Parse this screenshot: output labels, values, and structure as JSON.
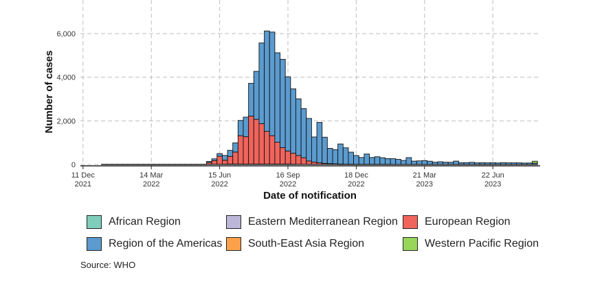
{
  "chart_data": {
    "type": "bar",
    "stacked": true,
    "xlabel": "Date of notification",
    "ylabel": "Number of cases",
    "ylim": [
      0,
      7500
    ],
    "yticks": [
      {
        "value": 0,
        "label": "0"
      },
      {
        "value": 2000,
        "label": "2,000"
      },
      {
        "value": 4000,
        "label": "4,000"
      },
      {
        "value": 6000,
        "label": "6,000"
      }
    ],
    "xticks": [
      {
        "week": 0,
        "label1": "11 Dec",
        "label2": "2021"
      },
      {
        "week": 13,
        "label1": "14 Mar",
        "label2": "2022"
      },
      {
        "week": 26,
        "label1": "15 Jun",
        "label2": "2022"
      },
      {
        "week": 39,
        "label1": "16 Sep",
        "label2": "2022"
      },
      {
        "week": 52,
        "label1": "18 Dec",
        "label2": "2022"
      },
      {
        "week": 65,
        "label1": "21 Mar",
        "label2": "2023"
      },
      {
        "week": 78,
        "label1": "22 Jun",
        "label2": "2023"
      }
    ],
    "xlim_weeks": [
      -0.5,
      87
    ],
    "first_bar_week": 4,
    "grid": true,
    "legend_position": "bottom",
    "series": [
      {
        "name": "African Region",
        "color": "#7fcdbb",
        "values": [
          5,
          5,
          5,
          5,
          5,
          5,
          5,
          5,
          5,
          5,
          5,
          5,
          5,
          5,
          5,
          5,
          5,
          5,
          5,
          5,
          10,
          10,
          10,
          10,
          15,
          15,
          15,
          15,
          15,
          15,
          15,
          15,
          15,
          15,
          15,
          15,
          10,
          10,
          10,
          10,
          10,
          10,
          10,
          10,
          10,
          5,
          5,
          5,
          5,
          5,
          5,
          5,
          5,
          5,
          5,
          5,
          5,
          5,
          5,
          5,
          5,
          5,
          5,
          5,
          5,
          5,
          5,
          5,
          5,
          5,
          5,
          5,
          5,
          5,
          5,
          5,
          5,
          5,
          5,
          5,
          5,
          5,
          5
        ]
      },
      {
        "name": "Eastern Mediterranean Region",
        "color": "#bcb6d8",
        "values": [
          0,
          0,
          0,
          0,
          0,
          0,
          0,
          0,
          0,
          0,
          0,
          0,
          0,
          0,
          0,
          0,
          0,
          0,
          0,
          0,
          0,
          0,
          0,
          5,
          5,
          5,
          5,
          5,
          5,
          5,
          5,
          5,
          5,
          5,
          5,
          5,
          5,
          0,
          0,
          0,
          0,
          0,
          0,
          0,
          0,
          0,
          0,
          0,
          0,
          0,
          0,
          0,
          0,
          0,
          0,
          0,
          0,
          0,
          0,
          0,
          0,
          0,
          0,
          0,
          0,
          0,
          0,
          0,
          0,
          0,
          0,
          0,
          0,
          0,
          0,
          0,
          0,
          0,
          0,
          0,
          0,
          0,
          0
        ]
      },
      {
        "name": "European Region",
        "color": "#f0645c",
        "values": [
          0,
          0,
          0,
          0,
          0,
          0,
          0,
          0,
          0,
          0,
          0,
          0,
          0,
          0,
          0,
          0,
          0,
          0,
          0,
          0,
          80,
          170,
          370,
          180,
          350,
          550,
          1300,
          1250,
          2200,
          2050,
          1850,
          1500,
          1300,
          1000,
          750,
          600,
          500,
          400,
          300,
          150,
          100,
          70,
          40,
          30,
          20,
          15,
          10,
          10,
          5,
          5,
          5,
          5,
          5,
          5,
          5,
          0,
          0,
          0,
          0,
          0,
          0,
          0,
          0,
          0,
          0,
          0,
          0,
          0,
          0,
          0,
          0,
          0,
          0,
          0,
          0,
          0,
          0,
          0,
          0,
          0,
          0,
          0,
          0
        ]
      },
      {
        "name": "Region of the Americas",
        "color": "#5b9bcf",
        "values": [
          5,
          5,
          5,
          5,
          5,
          5,
          5,
          5,
          5,
          5,
          5,
          5,
          5,
          5,
          5,
          5,
          5,
          5,
          5,
          5,
          50,
          80,
          120,
          220,
          280,
          420,
          700,
          900,
          1500,
          2200,
          3700,
          4600,
          4750,
          4100,
          4050,
          3400,
          2950,
          2600,
          2250,
          1950,
          1150,
          1850,
          1200,
          700,
          650,
          920,
          750,
          550,
          400,
          310,
          470,
          310,
          345,
          300,
          260,
          260,
          230,
          180,
          310,
          150,
          160,
          175,
          145,
          100,
          120,
          100,
          95,
          150,
          75,
          80,
          95,
          70,
          75,
          70,
          75,
          65,
          80,
          70,
          70,
          70,
          60,
          65,
          55
        ]
      },
      {
        "name": "South-East Asia Region",
        "color": "#fca14a",
        "values": [
          0,
          0,
          0,
          0,
          0,
          0,
          0,
          0,
          0,
          0,
          0,
          0,
          0,
          0,
          0,
          0,
          0,
          0,
          0,
          0,
          0,
          0,
          0,
          0,
          0,
          0,
          0,
          0,
          0,
          0,
          0,
          0,
          0,
          0,
          0,
          0,
          0,
          0,
          0,
          0,
          0,
          0,
          0,
          0,
          0,
          0,
          0,
          0,
          0,
          0,
          0,
          0,
          0,
          0,
          0,
          0,
          0,
          0,
          0,
          0,
          0,
          0,
          0,
          0,
          0,
          0,
          0,
          0,
          0,
          0,
          0,
          0,
          0,
          0,
          0,
          0,
          0,
          0,
          0,
          0,
          0,
          0,
          0
        ]
      },
      {
        "name": "Western Pacific Region",
        "color": "#98d65a",
        "values": [
          0,
          0,
          0,
          0,
          0,
          0,
          0,
          0,
          0,
          0,
          0,
          0,
          0,
          0,
          0,
          0,
          0,
          0,
          0,
          0,
          0,
          0,
          0,
          0,
          0,
          0,
          0,
          0,
          0,
          0,
          0,
          0,
          0,
          0,
          0,
          0,
          0,
          0,
          0,
          0,
          0,
          0,
          0,
          0,
          0,
          0,
          0,
          0,
          0,
          0,
          0,
          0,
          0,
          0,
          0,
          0,
          0,
          0,
          0,
          0,
          0,
          0,
          0,
          0,
          0,
          0,
          0,
          0,
          0,
          0,
          0,
          0,
          0,
          0,
          0,
          0,
          0,
          0,
          0,
          0,
          0,
          0,
          90
        ]
      }
    ]
  },
  "source": "Source: WHO"
}
